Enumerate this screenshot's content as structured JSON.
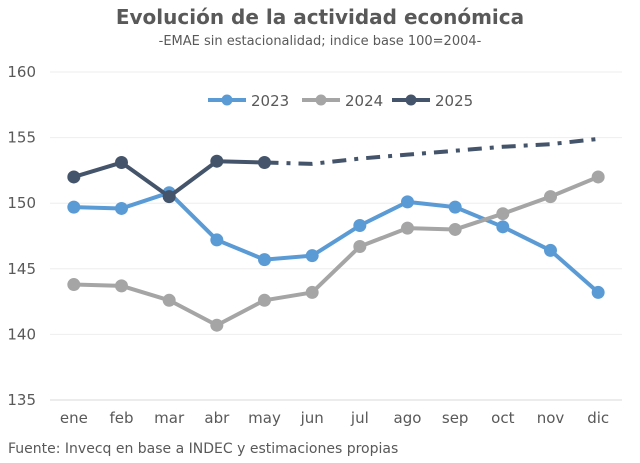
{
  "chart_data": {
    "type": "line",
    "title": "Evolución de la actividad económica",
    "subtitle": "-EMAE sin estacionalidad; indice base 100=2004-",
    "source": "Fuente: Invecq en base a INDEC y estimaciones propias",
    "categories": [
      "ene",
      "feb",
      "mar",
      "abr",
      "may",
      "jun",
      "jul",
      "ago",
      "sep",
      "oct",
      "nov",
      "dic"
    ],
    "ylim": [
      135,
      160
    ],
    "yticks": [
      135,
      140,
      145,
      150,
      155,
      160
    ],
    "grid": true,
    "legend_position": "top",
    "series": [
      {
        "name": "2023",
        "color": "#5b9bd5",
        "values": [
          149.7,
          149.6,
          150.8,
          147.2,
          145.7,
          146.0,
          148.3,
          150.1,
          149.7,
          148.2,
          146.4,
          143.2
        ]
      },
      {
        "name": "2024",
        "color": "#a5a5a5",
        "values": [
          143.8,
          143.7,
          142.6,
          140.7,
          142.6,
          143.2,
          146.7,
          148.1,
          148.0,
          149.2,
          150.5,
          152.0
        ]
      },
      {
        "name": "2025",
        "color": "#44546a",
        "values": [
          152.0,
          153.1,
          150.5,
          153.2,
          153.1,
          null,
          null,
          null,
          null,
          null,
          null,
          null
        ]
      }
    ],
    "projection": {
      "series": "2025",
      "color": "#44546a",
      "values": [
        null,
        null,
        null,
        null,
        153.1,
        153.0,
        153.4,
        153.7,
        154.0,
        154.3,
        154.5,
        154.9
      ]
    }
  }
}
